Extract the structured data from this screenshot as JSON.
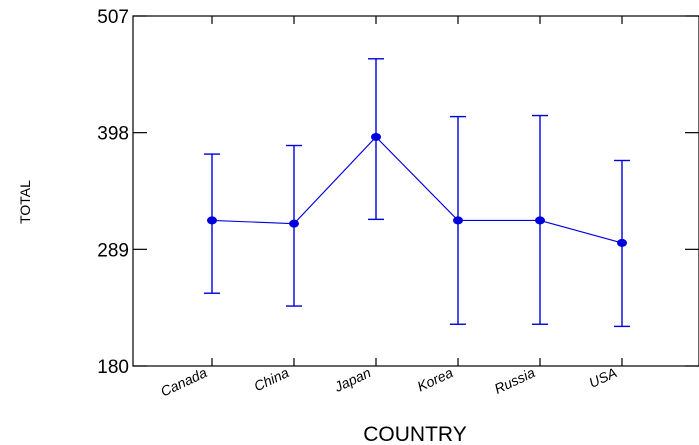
{
  "chart_data": {
    "type": "line",
    "xlabel": "COUNTRY",
    "ylabel": "TOTAL",
    "ylim": [
      180,
      507
    ],
    "yticks": [
      180,
      289,
      398,
      507
    ],
    "ytick_labels": [
      "180",
      "289",
      "398",
      "507"
    ],
    "categories": [
      "Canada",
      "China",
      "Japan",
      "Korea",
      "Russia",
      "USA"
    ],
    "series": [
      {
        "mean": [
          316,
          313,
          394,
          316,
          316,
          295
        ],
        "lower": [
          248,
          236,
          317,
          219,
          219,
          217
        ],
        "upper": [
          378,
          386,
          467,
          413,
          414,
          372
        ],
        "error_bars": true
      }
    ],
    "grid": false,
    "legend": "none",
    "color": "#0000dd"
  }
}
